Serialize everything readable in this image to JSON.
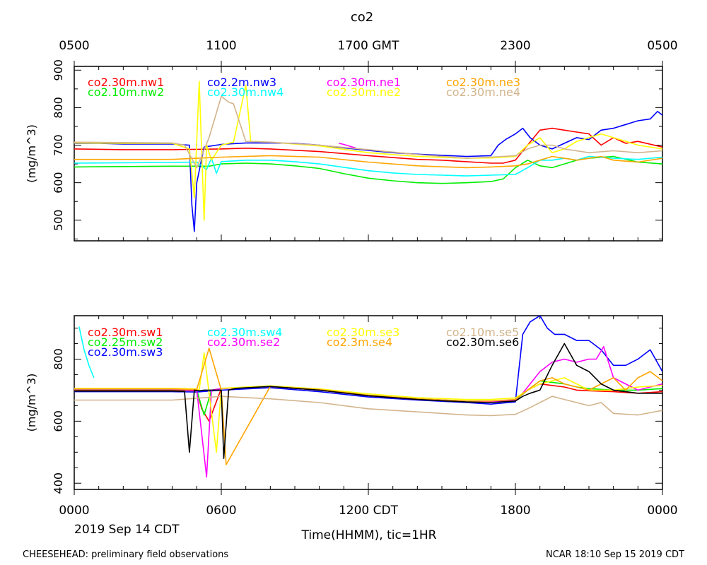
{
  "title": "co2",
  "footer": {
    "date": "2019 Sep 14 CDT",
    "left_note": "CHEESEHEAD: preliminary field observations",
    "right_note": "NCAR 18:10 Sep 15 2019 CDT"
  },
  "axes": {
    "top_ticks": [
      {
        "hour": 0,
        "label": "0500"
      },
      {
        "hour": 6,
        "label": "1100"
      },
      {
        "hour": 12,
        "label": "1700 GMT"
      },
      {
        "hour": 18,
        "label": "2300"
      },
      {
        "hour": 24,
        "label": "0500"
      }
    ],
    "bottom_ticks": [
      {
        "hour": 0,
        "label": "0000"
      },
      {
        "hour": 6,
        "label": "0600"
      },
      {
        "hour": 12,
        "label": "1200 CDT"
      },
      {
        "hour": 18,
        "label": "1800"
      },
      {
        "hour": 24,
        "label": "0000"
      }
    ],
    "xlabel": "Time(HHMM), tic=1HR",
    "ylabel": "(mg/m^3)"
  },
  "chart_data": [
    {
      "type": "line",
      "panel": "top",
      "xlim": [
        0,
        24
      ],
      "ylim": [
        445,
        910
      ],
      "yticks": [
        500,
        600,
        700,
        800,
        900
      ],
      "series": [
        {
          "name": "co2.30m.nw1",
          "color": "#ff0000",
          "x": [
            0,
            2,
            4,
            6,
            7,
            8,
            10,
            12,
            14,
            15,
            16,
            17,
            17.5,
            18,
            18.5,
            19,
            19.5,
            20,
            20.5,
            21,
            21.5,
            22,
            22.5,
            23,
            24
          ],
          "y": [
            690,
            688,
            688,
            690,
            692,
            690,
            683,
            672,
            662,
            660,
            656,
            652,
            652,
            660,
            700,
            740,
            745,
            740,
            735,
            730,
            700,
            720,
            705,
            710,
            695
          ]
        },
        {
          "name": "co2.10m.nw2",
          "color": "#00ee00",
          "x": [
            0,
            2,
            4,
            5.5,
            6,
            7,
            8,
            9,
            10,
            11,
            12,
            13,
            14,
            15,
            16,
            17,
            17.5,
            18,
            18.5,
            19,
            19.5,
            20,
            20.5,
            21,
            22,
            23,
            24
          ],
          "y": [
            642,
            643,
            644,
            644,
            650,
            652,
            650,
            645,
            638,
            624,
            612,
            605,
            600,
            598,
            600,
            603,
            610,
            640,
            660,
            645,
            640,
            650,
            660,
            665,
            670,
            655,
            650
          ]
        },
        {
          "name": "co2.2m.nw3",
          "color": "#0000ff",
          "x": [
            0,
            1,
            2,
            3,
            4,
            4.7,
            4.8,
            4.9,
            5,
            5.3,
            6,
            7,
            8,
            9,
            10,
            11,
            12,
            13,
            14,
            15,
            16,
            17,
            17.3,
            17.6,
            18,
            18.3,
            18.6,
            19,
            19.5,
            20,
            20.5,
            21,
            21.5,
            22,
            22.5,
            23,
            23.5,
            23.8,
            24
          ],
          "y": [
            705,
            705,
            703,
            703,
            703,
            700,
            540,
            470,
            600,
            695,
            702,
            706,
            706,
            705,
            700,
            693,
            686,
            680,
            676,
            673,
            670,
            672,
            700,
            715,
            730,
            745,
            720,
            700,
            690,
            705,
            720,
            715,
            740,
            745,
            755,
            765,
            770,
            790,
            780
          ]
        },
        {
          "name": "co2.30m.nw4",
          "color": "#00ffff",
          "x": [
            0,
            2,
            4,
            5,
            5.4,
            5.6,
            5.8,
            6,
            7,
            8,
            9,
            10,
            11,
            12,
            13,
            14,
            15,
            16,
            17,
            18,
            18.5,
            19,
            19.5,
            20,
            20.5,
            21,
            22,
            23,
            24
          ],
          "y": [
            652,
            653,
            654,
            655,
            635,
            665,
            625,
            656,
            660,
            660,
            656,
            650,
            641,
            632,
            626,
            622,
            620,
            618,
            620,
            622,
            640,
            660,
            660,
            665,
            660,
            670,
            665,
            662,
            668
          ]
        },
        {
          "name": "co2.30m.ne1",
          "color": "#ff00ff",
          "x": [
            10.8,
            11,
            11.2,
            11.5
          ],
          "y": [
            705,
            702,
            698,
            692
          ]
        },
        {
          "name": "co2.30m.ne2",
          "color": "#ffff00",
          "x": [
            0,
            2,
            4,
            4.7,
            4.9,
            5.1,
            5.3,
            5.4,
            5.6,
            6,
            6.5,
            7,
            7.2,
            8,
            10,
            12,
            14,
            16,
            17,
            18,
            18.5,
            19,
            19.5,
            20,
            20.5,
            21,
            21.5,
            22,
            23,
            24
          ],
          "y": [
            706,
            705,
            705,
            690,
            560,
            870,
            500,
            700,
            660,
            700,
            708,
            860,
            710,
            708,
            698,
            680,
            670,
            665,
            666,
            670,
            700,
            720,
            680,
            690,
            710,
            720,
            730,
            720,
            700,
            690
          ]
        },
        {
          "name": "co2.30m.ne3",
          "color": "#ffa500",
          "x": [
            0,
            2,
            4,
            6,
            8,
            10,
            12,
            14,
            16,
            17,
            18,
            18.5,
            19,
            19.5,
            20,
            20.5,
            21,
            21.5,
            22,
            23,
            24
          ],
          "y": [
            662,
            662,
            662,
            668,
            672,
            668,
            655,
            645,
            640,
            642,
            645,
            650,
            660,
            670,
            665,
            660,
            665,
            670,
            660,
            655,
            665
          ]
        },
        {
          "name": "co2.30m.ne4",
          "color": "#d2b48c",
          "x": [
            0,
            2,
            4,
            4.5,
            5,
            5.5,
            6,
            6.3,
            6.5,
            7,
            8,
            10,
            12,
            14,
            16,
            17,
            18,
            18.5,
            19,
            19.5,
            20,
            21,
            22,
            23,
            24
          ],
          "y": [
            708,
            707,
            706,
            700,
            640,
            720,
            830,
            815,
            810,
            710,
            708,
            700,
            688,
            675,
            665,
            668,
            672,
            690,
            700,
            700,
            690,
            680,
            685,
            680,
            685
          ]
        }
      ]
    },
    {
      "type": "line",
      "panel": "bottom",
      "xlim": [
        0,
        24
      ],
      "ylim": [
        380,
        940
      ],
      "yticks": [
        400,
        600,
        800
      ],
      "series": [
        {
          "name": "co2.30m.sw1",
          "color": "#ff0000",
          "x": [
            0,
            2,
            4,
            5,
            5.2,
            5.5,
            6,
            8,
            10,
            12,
            14,
            16,
            17,
            18,
            18.5,
            19,
            19.5,
            20,
            20.5,
            21,
            22,
            23,
            24
          ],
          "y": [
            700,
            700,
            700,
            698,
            640,
            600,
            705,
            712,
            700,
            683,
            672,
            665,
            665,
            668,
            700,
            720,
            715,
            710,
            700,
            698,
            695,
            690,
            695
          ]
        },
        {
          "name": "co2.25m.sw2",
          "color": "#00ee00",
          "x": [
            0,
            2,
            4,
            5,
            5.3,
            5.6,
            6,
            8,
            10,
            12,
            14,
            16,
            17,
            18,
            18.5,
            19,
            19.5,
            20,
            20.5,
            21,
            22,
            23,
            24
          ],
          "y": [
            702,
            702,
            702,
            700,
            620,
            700,
            705,
            712,
            700,
            682,
            672,
            664,
            664,
            668,
            700,
            730,
            725,
            720,
            710,
            705,
            700,
            700,
            705
          ]
        },
        {
          "name": "co2.30m.sw3",
          "color": "#0000ff",
          "x": [
            0,
            2,
            4,
            5,
            6,
            8,
            10,
            12,
            14,
            15,
            16,
            17,
            18,
            18.3,
            18.6,
            19,
            19.3,
            19.6,
            20,
            20.5,
            21,
            21.5,
            22,
            22.5,
            23,
            23.5,
            24
          ],
          "y": [
            695,
            695,
            695,
            694,
            700,
            708,
            695,
            678,
            668,
            664,
            660,
            655,
            662,
            880,
            920,
            940,
            900,
            880,
            880,
            860,
            860,
            830,
            780,
            780,
            800,
            830,
            760
          ]
        },
        {
          "name": "co2.30m.sw4",
          "color": "#00ffff",
          "x": [
            0.2,
            0.4,
            0.6,
            0.8
          ],
          "y": [
            905,
            830,
            780,
            740
          ]
        },
        {
          "name": "co2.30m.se2",
          "color": "#ff00ff",
          "x": [
            0,
            2,
            4,
            5,
            5.2,
            5.4,
            5.6,
            6,
            8,
            10,
            12,
            14,
            16,
            17,
            18,
            18.3,
            18.6,
            19,
            19.5,
            20,
            20.5,
            21,
            21.3,
            21.6,
            22,
            23,
            24
          ],
          "y": [
            703,
            703,
            703,
            700,
            560,
            420,
            700,
            705,
            712,
            700,
            682,
            670,
            664,
            662,
            668,
            690,
            720,
            760,
            790,
            800,
            790,
            800,
            800,
            840,
            740,
            700,
            720
          ]
        },
        {
          "name": "co2.30m.se3",
          "color": "#ffff00",
          "x": [
            0,
            2,
            4,
            5,
            5.1,
            5.3,
            5.8,
            6,
            8,
            10,
            12,
            14,
            16,
            17,
            18,
            18.5,
            19,
            19.5,
            20,
            20.5,
            21,
            22,
            23,
            24
          ],
          "y": [
            706,
            706,
            706,
            704,
            700,
            820,
            500,
            706,
            714,
            704,
            688,
            676,
            670,
            670,
            675,
            700,
            720,
            730,
            740,
            720,
            700,
            700,
            710,
            715
          ]
        },
        {
          "name": "co2.3m.se4",
          "color": "#ffa500",
          "x": [
            0,
            2,
            4,
            5,
            5.5,
            6,
            6.2,
            8,
            10,
            12,
            14,
            16,
            17,
            18,
            18.5,
            19,
            19.5,
            20,
            20.5,
            21,
            21.5,
            22,
            22.5,
            23,
            23.5,
            24
          ],
          "y": [
            704,
            704,
            704,
            702,
            835,
            700,
            460,
            712,
            702,
            684,
            672,
            665,
            665,
            670,
            700,
            730,
            740,
            720,
            710,
            700,
            720,
            740,
            700,
            740,
            760,
            730
          ]
        },
        {
          "name": "co2.10m.se5",
          "color": "#d2b48c",
          "x": [
            0,
            2,
            4,
            6,
            8,
            10,
            12,
            14,
            16,
            17,
            18,
            18.5,
            19,
            19.5,
            20,
            20.5,
            21,
            21.5,
            22,
            23,
            24
          ],
          "y": [
            668,
            668,
            668,
            680,
            672,
            660,
            640,
            630,
            620,
            618,
            622,
            640,
            660,
            680,
            670,
            660,
            650,
            660,
            625,
            620,
            635
          ]
        },
        {
          "name": "co2.30m.se6",
          "color": "#000000",
          "x": [
            0,
            2,
            4,
            4.5,
            4.7,
            4.9,
            5.1,
            5.3,
            6,
            6.1,
            6.3,
            6.6,
            8,
            10,
            12,
            14,
            16,
            17,
            18,
            18.3,
            18.6,
            19,
            19.5,
            20,
            20.5,
            21,
            21.5,
            22,
            23,
            24
          ],
          "y": [
            697,
            697,
            697,
            696,
            500,
            700,
            698,
            700,
            700,
            480,
            700,
            706,
            712,
            700,
            682,
            670,
            662,
            660,
            665,
            680,
            690,
            700,
            780,
            850,
            780,
            760,
            720,
            700,
            690,
            690
          ]
        }
      ]
    }
  ]
}
